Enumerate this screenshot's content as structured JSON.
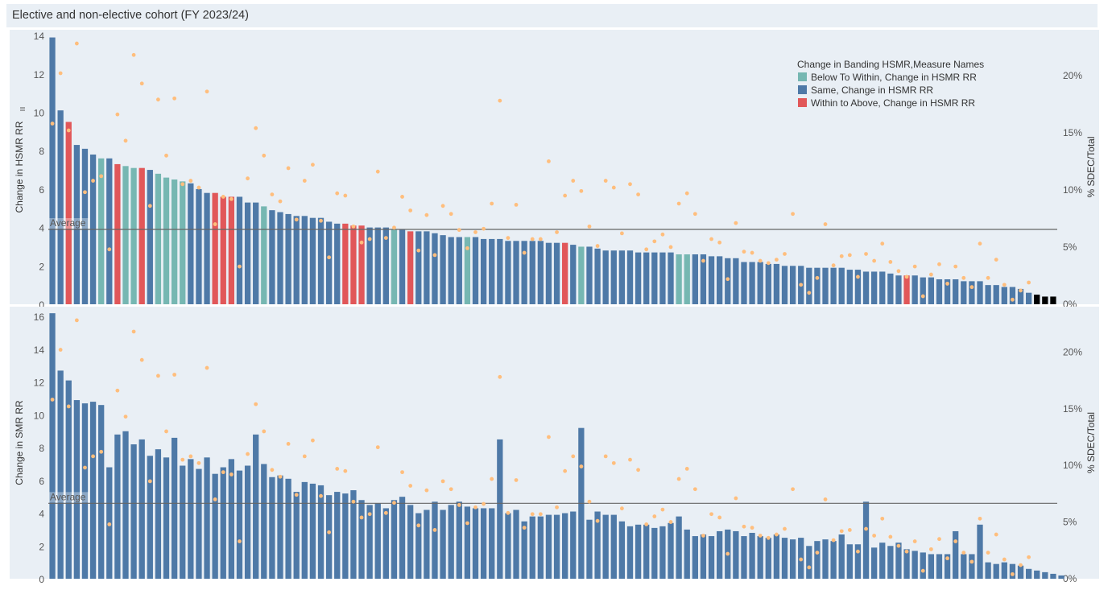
{
  "title": "Elective and non-elective cohort (FY 2023/24)",
  "colors": {
    "below_to_within": "#76b7b2",
    "same": "#4e79a7",
    "within_to_above": "#e15759",
    "dot": "#ffbe7d",
    "plot_bg": "#e9eff5",
    "average_line": "#666666"
  },
  "chart_data": [
    {
      "type": "bar",
      "ylabel": "Change in HSMR RR",
      "y2label": "% SDEC/Total",
      "ylim": [
        0,
        14.3
      ],
      "y2lim": [
        0,
        0.24
      ],
      "yticks": [
        0,
        2,
        4,
        6,
        8,
        10,
        12,
        14
      ],
      "y2ticks": [
        "0%",
        "5%",
        "10%",
        "15%",
        "20%"
      ],
      "average_label": "Average",
      "average": 3.9,
      "legend": {
        "title": "Change in Banding HSMR,Measure Names",
        "position": "top-right",
        "entries": [
          {
            "label": "Below To Within, Change in HSMR RR",
            "color_key": "below_to_within"
          },
          {
            "label": "Same, Change in HSMR RR",
            "color_key": "same"
          },
          {
            "label": "Within to Above, Change in HSMR RR",
            "color_key": "within_to_above"
          }
        ]
      },
      "values": [
        13.9,
        10.1,
        9.5,
        8.3,
        8.1,
        7.8,
        7.6,
        7.6,
        7.3,
        7.2,
        7.1,
        7.1,
        7.0,
        6.8,
        6.6,
        6.5,
        6.4,
        6.3,
        6.0,
        5.8,
        5.8,
        5.6,
        5.6,
        5.6,
        5.3,
        5.3,
        5.1,
        4.9,
        4.8,
        4.7,
        4.6,
        4.6,
        4.5,
        4.5,
        4.3,
        4.2,
        4.2,
        4.1,
        4.1,
        4.0,
        4.0,
        4.0,
        3.9,
        3.9,
        3.8,
        3.8,
        3.8,
        3.7,
        3.6,
        3.5,
        3.5,
        3.5,
        3.5,
        3.4,
        3.4,
        3.4,
        3.3,
        3.3,
        3.3,
        3.3,
        3.3,
        3.2,
        3.2,
        3.2,
        3.1,
        3.0,
        3.0,
        2.9,
        2.8,
        2.8,
        2.8,
        2.8,
        2.7,
        2.7,
        2.7,
        2.7,
        2.7,
        2.6,
        2.6,
        2.6,
        2.6,
        2.5,
        2.5,
        2.4,
        2.4,
        2.2,
        2.2,
        2.2,
        2.1,
        2.1,
        2.0,
        2.0,
        2.0,
        1.9,
        1.9,
        1.9,
        1.9,
        1.9,
        1.8,
        1.8,
        1.7,
        1.7,
        1.7,
        1.6,
        1.5,
        1.5,
        1.5,
        1.4,
        1.4,
        1.3,
        1.3,
        1.3,
        1.2,
        1.2,
        1.2,
        1.0,
        1.0,
        0.9,
        0.9,
        0.8,
        0.6,
        0.5,
        0.4,
        0.4
      ],
      "bands": [
        1,
        1,
        2,
        1,
        1,
        1,
        0,
        1,
        2,
        0,
        0,
        2,
        1,
        0,
        0,
        0,
        0,
        1,
        1,
        1,
        2,
        2,
        2,
        1,
        1,
        1,
        0,
        1,
        1,
        1,
        1,
        1,
        1,
        1,
        1,
        1,
        2,
        2,
        2,
        1,
        1,
        1,
        0,
        1,
        2,
        1,
        1,
        1,
        1,
        1,
        1,
        0,
        1,
        1,
        1,
        1,
        1,
        1,
        1,
        1,
        1,
        1,
        1,
        2,
        1,
        0,
        1,
        1,
        1,
        1,
        1,
        1,
        1,
        1,
        1,
        1,
        1,
        0,
        0,
        1,
        1,
        1,
        1,
        1,
        1,
        1,
        1,
        1,
        1,
        1,
        1,
        1,
        1,
        1,
        1,
        1,
        1,
        1,
        1,
        1,
        1,
        1,
        1,
        1,
        1,
        2,
        1,
        1,
        1,
        1,
        1,
        1,
        1,
        1,
        1,
        1,
        1,
        1,
        1,
        1,
        1
      ]
    },
    {
      "type": "bar",
      "ylabel": "Change in SMR RR",
      "y2label": "% SDEC/Total",
      "ylim": [
        0,
        16.6
      ],
      "y2lim": [
        0,
        0.24
      ],
      "yticks": [
        0,
        2,
        4,
        6,
        8,
        10,
        12,
        14,
        16
      ],
      "y2ticks": [
        "0%",
        "5%",
        "10%",
        "15%",
        "20%"
      ],
      "average_label": "Average",
      "average": 4.6,
      "values": [
        16.2,
        12.7,
        12.1,
        10.9,
        10.7,
        10.8,
        10.6,
        6.8,
        8.8,
        9.0,
        8.2,
        8.5,
        7.5,
        7.9,
        7.4,
        8.6,
        6.9,
        7.3,
        6.7,
        7.4,
        6.4,
        6.8,
        7.3,
        6.6,
        6.9,
        8.8,
        7.0,
        6.2,
        6.3,
        6.1,
        5.3,
        5.9,
        5.8,
        5.7,
        5.1,
        5.3,
        5.2,
        5.4,
        4.8,
        4.5,
        4.6,
        4.3,
        4.8,
        5.0,
        4.5,
        4.0,
        4.2,
        4.7,
        4.2,
        4.5,
        4.7,
        4.4,
        4.3,
        4.3,
        4.3,
        8.5,
        4.0,
        4.2,
        3.5,
        3.8,
        3.8,
        3.9,
        3.9,
        4.0,
        4.1,
        9.2,
        3.6,
        4.1,
        3.9,
        3.9,
        3.5,
        3.2,
        3.3,
        3.3,
        3.1,
        3.2,
        3.4,
        3.8,
        3.0,
        2.6,
        2.7,
        2.6,
        2.9,
        3.0,
        2.9,
        2.6,
        2.8,
        2.6,
        2.5,
        2.7,
        2.5,
        2.4,
        2.5,
        2.0,
        2.3,
        2.4,
        2.3,
        2.7,
        2.1,
        2.1,
        4.7,
        1.9,
        2.2,
        2.0,
        2.2,
        1.8,
        1.7,
        1.6,
        1.5,
        1.5,
        1.5,
        2.9,
        1.5,
        1.5,
        3.3,
        1.0,
        0.9,
        1.0,
        0.9,
        0.8,
        0.6,
        0.5,
        0.4,
        0.3,
        0.2
      ]
    },
    {
      "type": "scatter",
      "series_role": "% SDEC/Total (shared by both panels)",
      "values": [
        0.158,
        0.202,
        0.152,
        0.228,
        0.098,
        0.108,
        0.112,
        0.048,
        0.166,
        0.143,
        0.218,
        0.193,
        0.086,
        0.179,
        0.13,
        0.18,
        0.105,
        0.108,
        0.102,
        0.186,
        0.07,
        0.094,
        0.092,
        0.033,
        0.11,
        0.154,
        0.13,
        0.096,
        0.09,
        0.119,
        0.074,
        0.108,
        0.122,
        0.073,
        0.041,
        0.097,
        0.095,
        0.068,
        0.054,
        0.057,
        0.116,
        0.058,
        0.067,
        0.094,
        0.082,
        0.047,
        0.078,
        0.043,
        0.086,
        0.079,
        0.065,
        0.049,
        0.063,
        0.066,
        0.088,
        0.178,
        0.058,
        0.087,
        0.045,
        0.057,
        0.057,
        0.125,
        0.063,
        0.095,
        0.108,
        0.099,
        0.068,
        0.051,
        0.108,
        0.102,
        0.062,
        0.105,
        0.096,
        0.048,
        0.055,
        0.061,
        0.05,
        0.088,
        0.097,
        0.079,
        0.038,
        0.057,
        0.054,
        0.022,
        0.071,
        0.046,
        0.045,
        0.038,
        0.036,
        0.039,
        0.044,
        0.079,
        0.017,
        0.01,
        0.023,
        0.07,
        0.034,
        0.042,
        0.043,
        0.024,
        0.044,
        0.038,
        0.053,
        0.037,
        0.029,
        0.024,
        0.033,
        0.007,
        0.026,
        0.035,
        0.018,
        0.033,
        0.023,
        0.015,
        0.053,
        0.023,
        0.039,
        0.017,
        0.004,
        0.012,
        0.019
      ]
    }
  ]
}
